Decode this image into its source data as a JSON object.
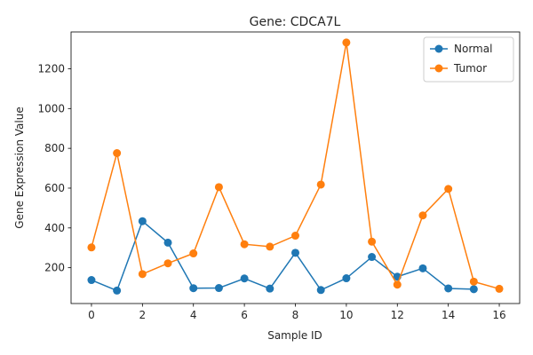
{
  "chart_data": {
    "type": "line",
    "title": "Gene: CDCA7L",
    "xlabel": "Sample ID",
    "ylabel": "Gene Expression Value",
    "xlim": [
      -0.8,
      16.8
    ],
    "ylim": [
      20,
      1385
    ],
    "xticks": [
      0,
      2,
      4,
      6,
      8,
      10,
      12,
      14,
      16
    ],
    "yticks": [
      200,
      400,
      600,
      800,
      1000,
      1200
    ],
    "grid": false,
    "legend_position": "top-right",
    "series": [
      {
        "name": "Normal",
        "color": "#1f77b4",
        "x": [
          0,
          1,
          2,
          3,
          4,
          5,
          6,
          7,
          8,
          9,
          10,
          11,
          12,
          13,
          14,
          15
        ],
        "values": [
          138,
          85,
          434,
          326,
          97,
          98,
          146,
          95,
          275,
          88,
          147,
          254,
          155,
          197,
          96,
          92
        ]
      },
      {
        "name": "Tumor",
        "color": "#ff7f0e",
        "x": [
          0,
          1,
          2,
          3,
          4,
          5,
          6,
          7,
          8,
          9,
          10,
          11,
          12,
          13,
          14,
          15,
          16
        ],
        "values": [
          302,
          776,
          168,
          222,
          272,
          605,
          318,
          306,
          361,
          618,
          1332,
          331,
          115,
          463,
          596,
          130,
          94
        ]
      }
    ]
  }
}
